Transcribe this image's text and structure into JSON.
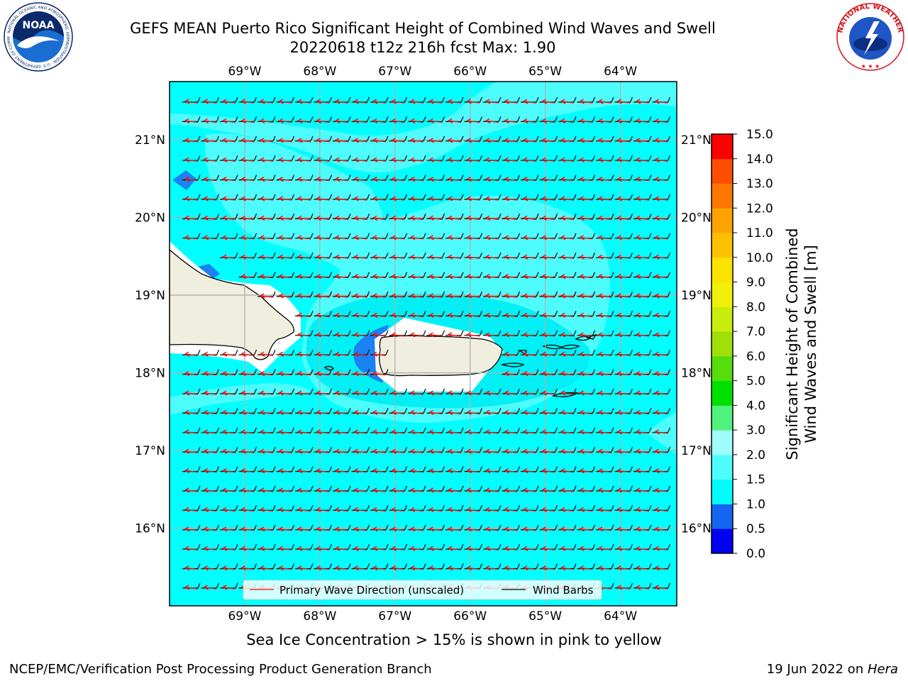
{
  "header": {
    "title_line1": "GEFS MEAN Puerto Rico Significant Height of Combined Wind Waves and Swell",
    "title_line2": "20220618 t12z 216h fcst   Max: 1.90"
  },
  "logos": {
    "noaa_text": "NOAA",
    "noaa_ring_text": "NATIONAL OCEANIC AND ATMOSPHERIC ADMINISTRATION · U.S. DEPARTMENT OF COMMERCE",
    "nws_ring_text": "NATIONAL WEATHER SERVICE"
  },
  "colors": {
    "sea": "#00ffff",
    "sea_light": "#4dfdfd",
    "sea_mid": "#00f0f5",
    "shallow": "#1a82f2",
    "land": "#efeedf",
    "grid": "#b0b0b0",
    "wave_arrow": "#e8120d"
  },
  "chart_data": {
    "type": "heatmap",
    "x_axis": {
      "ticks": [
        "69°W",
        "68°W",
        "67°W",
        "66°W",
        "65°W",
        "64°W"
      ],
      "range": [
        -70.0,
        -63.25
      ]
    },
    "y_axis": {
      "ticks": [
        "21°N",
        "20°N",
        "19°N",
        "18°N",
        "17°N",
        "16°N"
      ],
      "range": [
        15.0,
        21.75
      ]
    },
    "colorbar": {
      "label_line1": "Significant Height of Combined",
      "label_line2": "Wind Waves and Swell [m]",
      "levels": [
        0.0,
        0.5,
        1.0,
        1.5,
        2.0,
        3.0,
        4.0,
        5.0,
        6.0,
        7.0,
        8.0,
        9.0,
        10.0,
        11.0,
        12.0,
        13.0,
        14.0,
        15.0
      ],
      "tick_labels": [
        "0.0",
        "0.5",
        "1.0",
        "1.5",
        "2.0",
        "3.0",
        "4.0",
        "5.0",
        "6.0",
        "7.0",
        "8.0",
        "9.0",
        "10.0",
        "11.0",
        "12.0",
        "13.0",
        "14.0",
        "15.0"
      ],
      "colors": [
        "#0000f5",
        "#1565f0",
        "#00fdfd",
        "#4dfdfd",
        "#9ffdfd",
        "#50f27d",
        "#00e000",
        "#55dd0c",
        "#9fdf0a",
        "#c8ec0c",
        "#f0f00a",
        "#fde300",
        "#fdc100",
        "#fda300",
        "#fd7700",
        "#fd4d00",
        "#fd0000"
      ]
    },
    "legend": {
      "position": "lower-center",
      "items": [
        "Primary Wave Direction (unscaled)",
        "Wind Barbs"
      ]
    },
    "max_value": 1.9,
    "wave_direction": "from east (arrows point west)",
    "wind_barbs": "easterly"
  },
  "footer": {
    "note": "Sea Ice Concentration > 15% is shown in pink to yellow",
    "credit_left": "NCEP/EMC/Verification Post Processing Product Generation Branch",
    "credit_date": "19 Jun 2022 on ",
    "credit_host": "Hera"
  }
}
